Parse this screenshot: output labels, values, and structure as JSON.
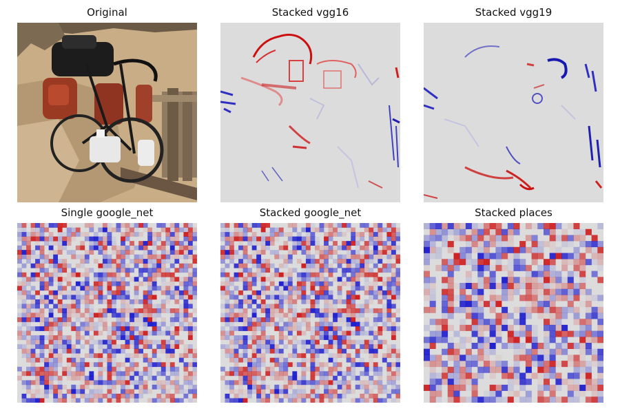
{
  "figure": {
    "panels": [
      {
        "key": "original",
        "title": "Original",
        "kind": "photo"
      },
      {
        "key": "vgg16",
        "title": "Stacked vgg16",
        "kind": "heatmap-smooth"
      },
      {
        "key": "vgg19",
        "title": "Stacked vgg19",
        "kind": "heatmap-smooth"
      },
      {
        "key": "single_google_net",
        "title": "Single google_net",
        "kind": "heatmap-grid"
      },
      {
        "key": "stacked_google_net",
        "title": "Stacked google_net",
        "kind": "heatmap-grid"
      },
      {
        "key": "places",
        "title": "Stacked places",
        "kind": "heatmap-grid"
      }
    ],
    "colors": {
      "background": "#dcdcdc",
      "positive": "#cc0000",
      "negative": "#0000cc"
    }
  }
}
